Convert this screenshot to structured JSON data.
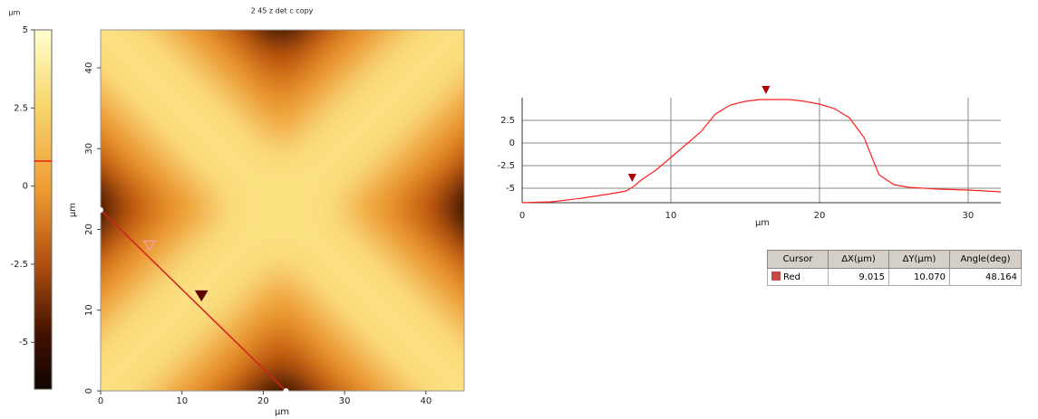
{
  "chart_data": [
    {
      "type": "image",
      "title": "2 45 z det c copy",
      "x_label": "µm",
      "y_label": "µm",
      "xlim": [
        0,
        44.7
      ],
      "ylim": [
        0,
        44.7
      ],
      "xticks": [
        0,
        10,
        20,
        30,
        40
      ],
      "yticks": [
        0,
        10,
        20,
        30,
        40
      ],
      "cursor_line": {
        "color": "#d02020",
        "x": [
          0,
          22.8
        ],
        "y": [
          22.4,
          0
        ]
      },
      "cursor_markers": {
        "x": [
          6.0,
          12.4
        ],
        "y": [
          18.0,
          11.8
        ]
      },
      "colorbar": {
        "label": "µm",
        "lim": [
          -6.5,
          5
        ],
        "ticks": [
          5,
          2.5,
          0,
          -2.5,
          -5
        ],
        "marker": 0.8
      }
    },
    {
      "type": "line",
      "x_label": "µm",
      "xlim": [
        0,
        32.2
      ],
      "ylim": [
        -6.6,
        5
      ],
      "xticks": [
        0,
        10,
        20,
        30
      ],
      "yticks": [
        2.5,
        0,
        -2.5,
        -5
      ],
      "grid": true,
      "color": "#ff2020",
      "x": [
        0,
        2,
        4,
        6,
        7,
        7.5,
        8,
        9,
        10,
        11,
        12,
        13,
        14,
        15,
        16,
        17,
        18,
        19,
        20,
        21,
        22,
        23,
        24,
        25,
        26,
        28,
        30,
        32.2
      ],
      "values": [
        -6.6,
        -6.5,
        -6.1,
        -5.6,
        -5.3,
        -4.8,
        -4.1,
        -3.0,
        -1.6,
        -0.2,
        1.2,
        3.2,
        4.2,
        4.6,
        4.8,
        4.8,
        4.8,
        4.6,
        4.3,
        3.8,
        2.8,
        0.6,
        -3.5,
        -4.6,
        -4.9,
        -5.1,
        -5.2,
        -5.4
      ],
      "cursors": [
        7.4,
        16.4
      ],
      "cursor_color": "#b00000"
    }
  ],
  "table": {
    "columns": [
      "Cursor",
      "ΔX(µm)",
      "ΔY(µm)",
      "Angle(deg)"
    ],
    "rows": [
      [
        "Red",
        "9.015",
        "10.070",
        "48.164"
      ]
    ],
    "swatch_color": "#c84848"
  }
}
